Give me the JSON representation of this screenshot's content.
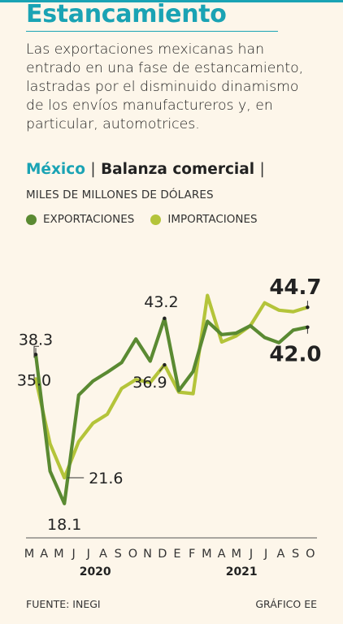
{
  "headline": "Estancamiento",
  "intro": "Las exportaciones mexicanas han entrado en una fase de estancamiento, lastradas por el disminuido dinamismo de los envíos manufactureros y, en particular, automotrices.",
  "chart_header": {
    "country": "México",
    "separator": "|",
    "title": "Balanza comercial",
    "trailing_separator": "|",
    "units": "MILES DE MILLONES DE DÓLARES"
  },
  "colors": {
    "accent": "#1aa3b4",
    "exports": "#5a8a32",
    "imports": "#b4c43a"
  },
  "footer": {
    "source": "FUENTE: INEGI",
    "credit": "GRÁFICO EE"
  },
  "chart_data": {
    "type": "line",
    "x": [
      "M",
      "A",
      "M",
      "J",
      "J",
      "A",
      "S",
      "O",
      "N",
      "D",
      "E",
      "F",
      "M",
      "A",
      "M",
      "J",
      "J",
      "A",
      "S",
      "O"
    ],
    "year_labels": [
      {
        "label": "2020",
        "start_index": 0,
        "end_index": 9
      },
      {
        "label": "2021",
        "start_index": 10,
        "end_index": 19
      }
    ],
    "series": [
      {
        "name": "EXPORTACIONES",
        "key": "exports",
        "values": [
          38.3,
          22.5,
          18.1,
          32.8,
          34.7,
          35.9,
          37.2,
          40.4,
          37.4,
          43.2,
          33.4,
          36.0,
          42.8,
          41.0,
          41.2,
          42.2,
          40.6,
          39.9,
          41.6,
          42.0
        ]
      },
      {
        "name": "IMPORTACIONES",
        "key": "imports",
        "values": [
          35.0,
          26.2,
          21.6,
          26.5,
          29.0,
          30.2,
          33.7,
          34.9,
          34.5,
          36.9,
          33.2,
          33.0,
          46.3,
          40.0,
          40.8,
          42.2,
          45.3,
          44.3,
          44.1,
          44.7
        ]
      }
    ],
    "annotations": [
      {
        "series": "exports",
        "index": 0,
        "label": "38.3"
      },
      {
        "series": "imports",
        "index": 0,
        "label": "35.0"
      },
      {
        "series": "exports",
        "index": 2,
        "label": "18.1"
      },
      {
        "series": "imports",
        "index": 2,
        "label": "21.6"
      },
      {
        "series": "exports",
        "index": 9,
        "label": "43.2"
      },
      {
        "series": "imports",
        "index": 9,
        "label": "36.9"
      },
      {
        "series": "imports",
        "index": 19,
        "label": "44.7"
      },
      {
        "series": "exports",
        "index": 19,
        "label": "42.0"
      }
    ],
    "ylim": [
      15,
      50
    ],
    "grid": false,
    "legend": "top"
  }
}
